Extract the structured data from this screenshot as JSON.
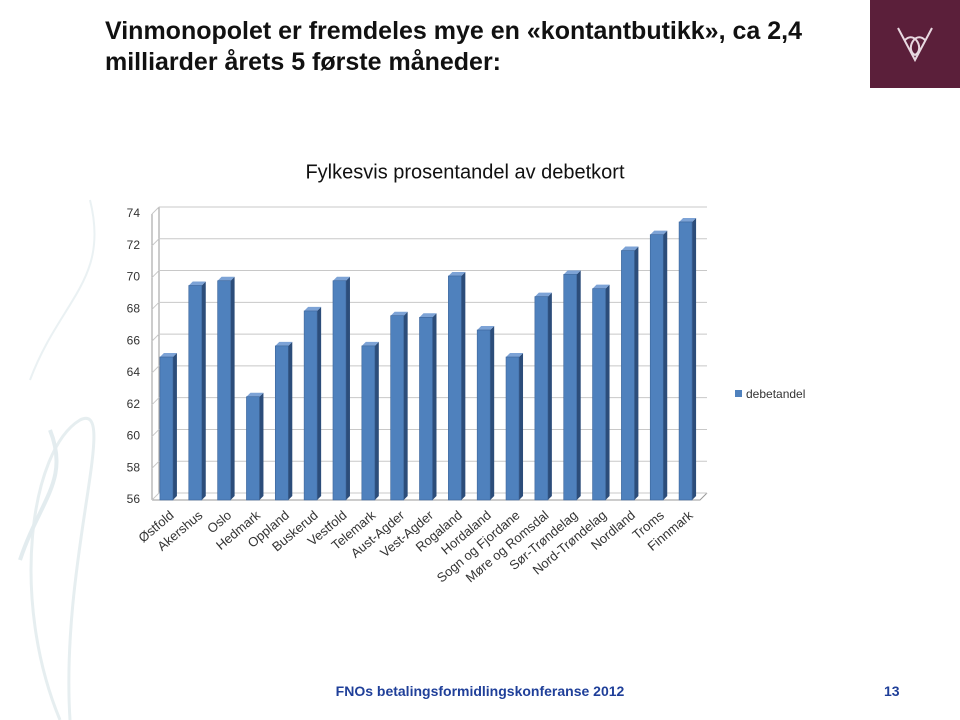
{
  "slide": {
    "title": "Vinmonopolet er fremdeles mye en «kontantbutikk», ca 2,4 milliarder årets 5 første måneder:",
    "footer": "FNOs betalingsformidlingskonferanse 2012",
    "page_number": "13"
  },
  "chart_data": {
    "type": "bar",
    "title": "Fylkesvis prosentandel av debetkort",
    "categories": [
      "Østfold",
      "Akershus",
      "Oslo",
      "Hedmark",
      "Oppland",
      "Buskerud",
      "Vestfold",
      "Telemark",
      "Aust-Agder",
      "Vest-Agder",
      "Rogaland",
      "Hordaland",
      "Sogn og Fjordane",
      "Møre og Romsdal",
      "Sør-Trøndelag",
      "Nord-Trøndelag",
      "Nordland",
      "Troms",
      "Finnmark"
    ],
    "series": [
      {
        "name": "debetandel",
        "color": "#4f81bd",
        "values": [
          65.0,
          69.5,
          69.8,
          62.5,
          65.7,
          67.9,
          69.8,
          65.7,
          67.6,
          67.5,
          70.1,
          66.7,
          65.0,
          68.8,
          70.2,
          69.3,
          71.7,
          72.7,
          73.5
        ]
      }
    ],
    "ylim": [
      56,
      74
    ],
    "yticks": [
      56,
      58,
      60,
      62,
      64,
      66,
      68,
      70,
      72,
      74
    ],
    "grid": true,
    "legend": "right"
  }
}
